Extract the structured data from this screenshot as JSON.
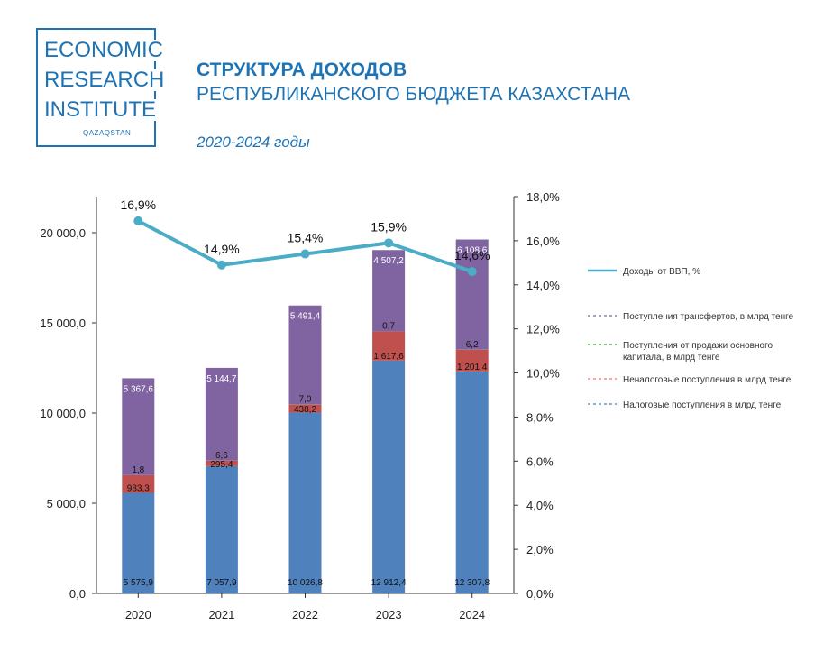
{
  "logo": {
    "line1": "ECONOMIC",
    "line2": "RESEARCH",
    "line3": "INSTITUTE",
    "sub": "QAZAQSTAN",
    "color": "#1e73b5"
  },
  "header": {
    "title_line1": "СТРУКТУРА ДОХОДОВ",
    "title_line2": "РЕСПУБЛИКАНСКОГО БЮДЖЕТА КАЗАХСТАНА",
    "subtitle": "2020-2024 годы"
  },
  "chart_data": {
    "type": "bar",
    "stacked": true,
    "categories": [
      "2020",
      "2021",
      "2022",
      "2023",
      "2024"
    ],
    "y_left": {
      "ylim": [
        0,
        22000
      ],
      "ticks": [
        0,
        5000,
        10000,
        15000,
        20000
      ],
      "tick_labels": [
        "0,0",
        "5 000,0",
        "10 000,0",
        "15 000,0",
        "20 000,0"
      ]
    },
    "y_right": {
      "ylim": [
        0,
        18
      ],
      "ticks": [
        0,
        2,
        4,
        6,
        8,
        10,
        12,
        14,
        16,
        18
      ],
      "tick_labels": [
        "0,0%",
        "2,0%",
        "4,0%",
        "6,0%",
        "8,0%",
        "10,0%",
        "12,0%",
        "14,0%",
        "16,0%",
        "18,0%"
      ]
    },
    "series": [
      {
        "name": "Налоговые поступления в млрд тенге",
        "color": "#4f81bd",
        "values": [
          5575.9,
          7057.9,
          10026.8,
          12912.4,
          12307.8
        ],
        "labels": [
          "5 575,9",
          "7 057,9",
          "10 026,8",
          "12 912,4",
          "12 307,8"
        ],
        "label_color": "#111111"
      },
      {
        "name": "Неналоговые поступления в млрд тенге",
        "color": "#c0504d",
        "values": [
          983.3,
          295.4,
          438.2,
          1617.6,
          1201.4
        ],
        "labels": [
          "983,3",
          "295,4",
          "438,2",
          "1 617,6",
          "1 201,4"
        ],
        "label_color": "#111111"
      },
      {
        "name": "Поступления от продажи основного капитала, в млрд тенге",
        "color": "#9bbb59",
        "values": [
          1.8,
          6.6,
          7.0,
          0.7,
          6.2
        ],
        "labels": [
          "1,8",
          "6,6",
          "7,0",
          "0,7",
          "6,2"
        ],
        "label_color": "#111111"
      },
      {
        "name": "Поступления трансфертов, в млрд тенге",
        "color": "#8064a2",
        "values": [
          5367.6,
          5144.7,
          5491.4,
          4507.2,
          6108.6
        ],
        "labels": [
          "5 367,6",
          "5 144,7",
          "5 491,4",
          "4 507,2",
          "6 108,6"
        ],
        "label_color": "#ffffff"
      }
    ],
    "line": {
      "name": "Доходы от ВВП, %",
      "color": "#4bacc6",
      "values": [
        16.9,
        14.9,
        15.4,
        15.9,
        14.6
      ],
      "labels": [
        "16,9%",
        "14,9%",
        "15,4%",
        "15,9%",
        "14,6%"
      ]
    },
    "legend": {
      "position": "right",
      "items": [
        {
          "text": "Доходы от ВВП, %",
          "color": "#4bacc6",
          "style": "solid"
        },
        {
          "text": "Поступления трансфертов, в млрд тенге",
          "color": "#8064a2",
          "style": "dashed"
        },
        {
          "text": "Поступления от продажи основного капитала, в млрд тенге",
          "color": "#2ca02c",
          "style": "dashed"
        },
        {
          "text": "Неналоговые поступления в млрд тенге",
          "color": "#ff6b6b",
          "style": "dashed"
        },
        {
          "text": "Налоговые поступления в млрд тенге",
          "color": "#4f81bd",
          "style": "dashed"
        }
      ]
    },
    "grid": false
  }
}
